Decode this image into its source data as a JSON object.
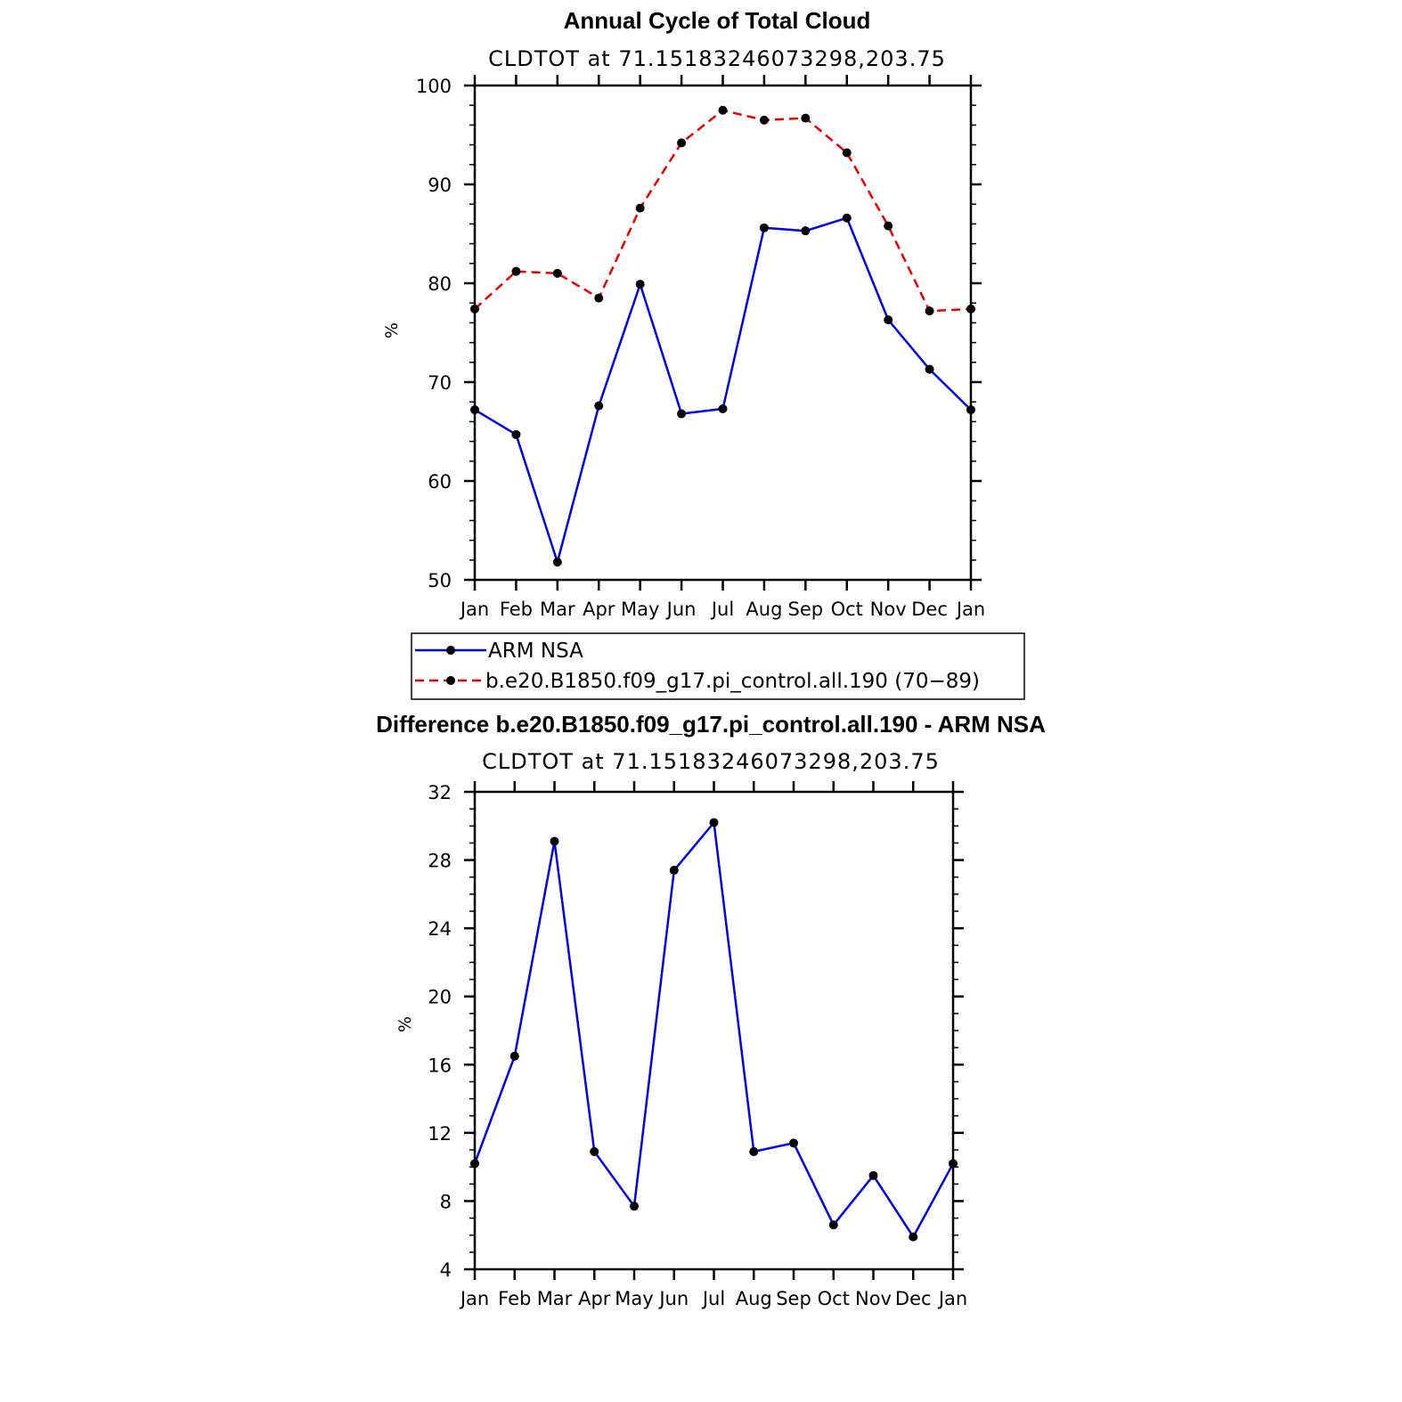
{
  "chart_data": [
    {
      "type": "line",
      "title": "Annual Cycle of Total Cloud",
      "subtitle": "CLDTOT at 71.15183246073298,203.75",
      "ylabel": "%",
      "ylim": [
        50,
        100
      ],
      "yticks": [
        "50",
        "60",
        "70",
        "80",
        "90",
        "100"
      ],
      "categories": [
        "Jan",
        "Feb",
        "Mar",
        "Apr",
        "May",
        "Jun",
        "Jul",
        "Aug",
        "Sep",
        "Oct",
        "Nov",
        "Dec",
        "Jan"
      ],
      "series": [
        {
          "name": "ARM NSA",
          "color": "#0000ee",
          "dash": false,
          "values": [
            67.2,
            64.7,
            51.8,
            67.6,
            79.9,
            66.8,
            67.3,
            85.6,
            85.3,
            86.6,
            76.3,
            71.3,
            67.2
          ]
        },
        {
          "name": "b.e20.B1850.f09_g17.pi_control.all.190 (70−89)",
          "color": "#ee0000",
          "dash": true,
          "values": [
            77.4,
            81.2,
            81.0,
            78.5,
            87.6,
            94.2,
            97.5,
            96.5,
            96.7,
            93.2,
            85.8,
            77.2,
            77.4
          ]
        }
      ],
      "legend": "below"
    },
    {
      "type": "line",
      "title": "Difference b.e20.B1850.f09_g17.pi_control.all.190 - ARM NSA",
      "subtitle": "CLDTOT at 71.15183246073298,203.75",
      "ylabel": "%",
      "ylim": [
        4,
        32
      ],
      "yticks": [
        "4",
        "8",
        "12",
        "16",
        "20",
        "24",
        "28",
        "32"
      ],
      "categories": [
        "Jan",
        "Feb",
        "Mar",
        "Apr",
        "May",
        "Jun",
        "Jul",
        "Aug",
        "Sep",
        "Oct",
        "Nov",
        "Dec",
        "Jan"
      ],
      "series": [
        {
          "color": "#0000ee",
          "dash": false,
          "values": [
            10.2,
            16.5,
            29.1,
            10.9,
            7.7,
            27.4,
            30.2,
            10.9,
            11.4,
            6.6,
            9.5,
            5.9,
            10.2
          ]
        }
      ]
    }
  ]
}
